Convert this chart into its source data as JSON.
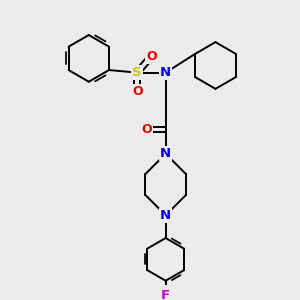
{
  "bg_color": "#ebebeb",
  "atom_colors": {
    "C": "#000000",
    "N": "#0000ee",
    "O": "#ee0000",
    "S": "#cccc00",
    "F": "#cc00cc"
  },
  "bond_color": "#000000",
  "bond_width": 1.4,
  "fig_size": [
    3.0,
    3.0
  ],
  "dpi": 100
}
